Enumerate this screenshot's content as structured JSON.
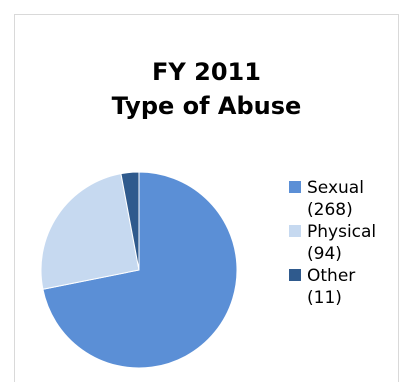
{
  "chart_data": {
    "type": "pie",
    "title_lines": [
      "FY 2011",
      "Type of Abuse"
    ],
    "categories": [
      "Sexual",
      "Physical",
      "Other"
    ],
    "values": [
      268,
      94,
      11
    ],
    "value_labels": [
      "(268)",
      "(94)",
      "(11)"
    ],
    "colors": [
      "#5b8fd6",
      "#c6d9f0",
      "#2f5a8d"
    ],
    "legend_position": "right"
  }
}
